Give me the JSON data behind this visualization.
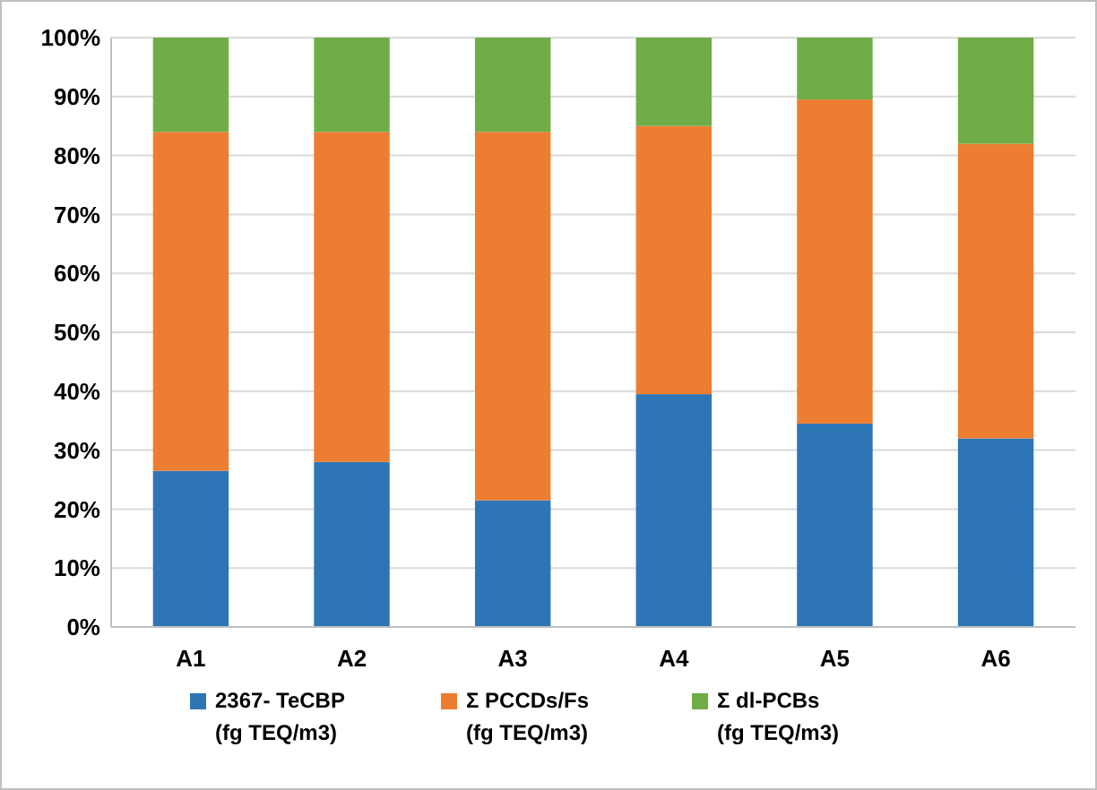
{
  "chart_data": {
    "type": "bar",
    "stacked": true,
    "categories": [
      "A1",
      "A2",
      "A3",
      "A4",
      "A5",
      "A6"
    ],
    "series": [
      {
        "name": "2367- TeCBP\n(fg TEQ/m3)",
        "color": "#2e75b6",
        "values": [
          26.5,
          28,
          21.5,
          39.5,
          34.5,
          32
        ]
      },
      {
        "name": "Σ PCCDs/Fs\n(fg TEQ/m3)",
        "color": "#ed7d31",
        "values": [
          57.5,
          56,
          62.5,
          45.5,
          55,
          50
        ]
      },
      {
        "name": "Σ dl-PCBs\n(fg TEQ/m3)",
        "color": "#70ad47",
        "values": [
          16,
          16,
          16,
          15,
          10.5,
          18
        ]
      }
    ],
    "ylim": [
      0,
      100
    ],
    "yticks": [
      {
        "value": 0,
        "label": "0%"
      },
      {
        "value": 10,
        "label": "10%"
      },
      {
        "value": 20,
        "label": "20%"
      },
      {
        "value": 30,
        "label": "30%"
      },
      {
        "value": 40,
        "label": "40%"
      },
      {
        "value": 50,
        "label": "50%"
      },
      {
        "value": 60,
        "label": "60%"
      },
      {
        "value": 70,
        "label": "70%"
      },
      {
        "value": 80,
        "label": "80%"
      },
      {
        "value": 90,
        "label": "90%"
      },
      {
        "value": 100,
        "label": "100%"
      }
    ],
    "grid": "y",
    "legend": "bottom"
  }
}
